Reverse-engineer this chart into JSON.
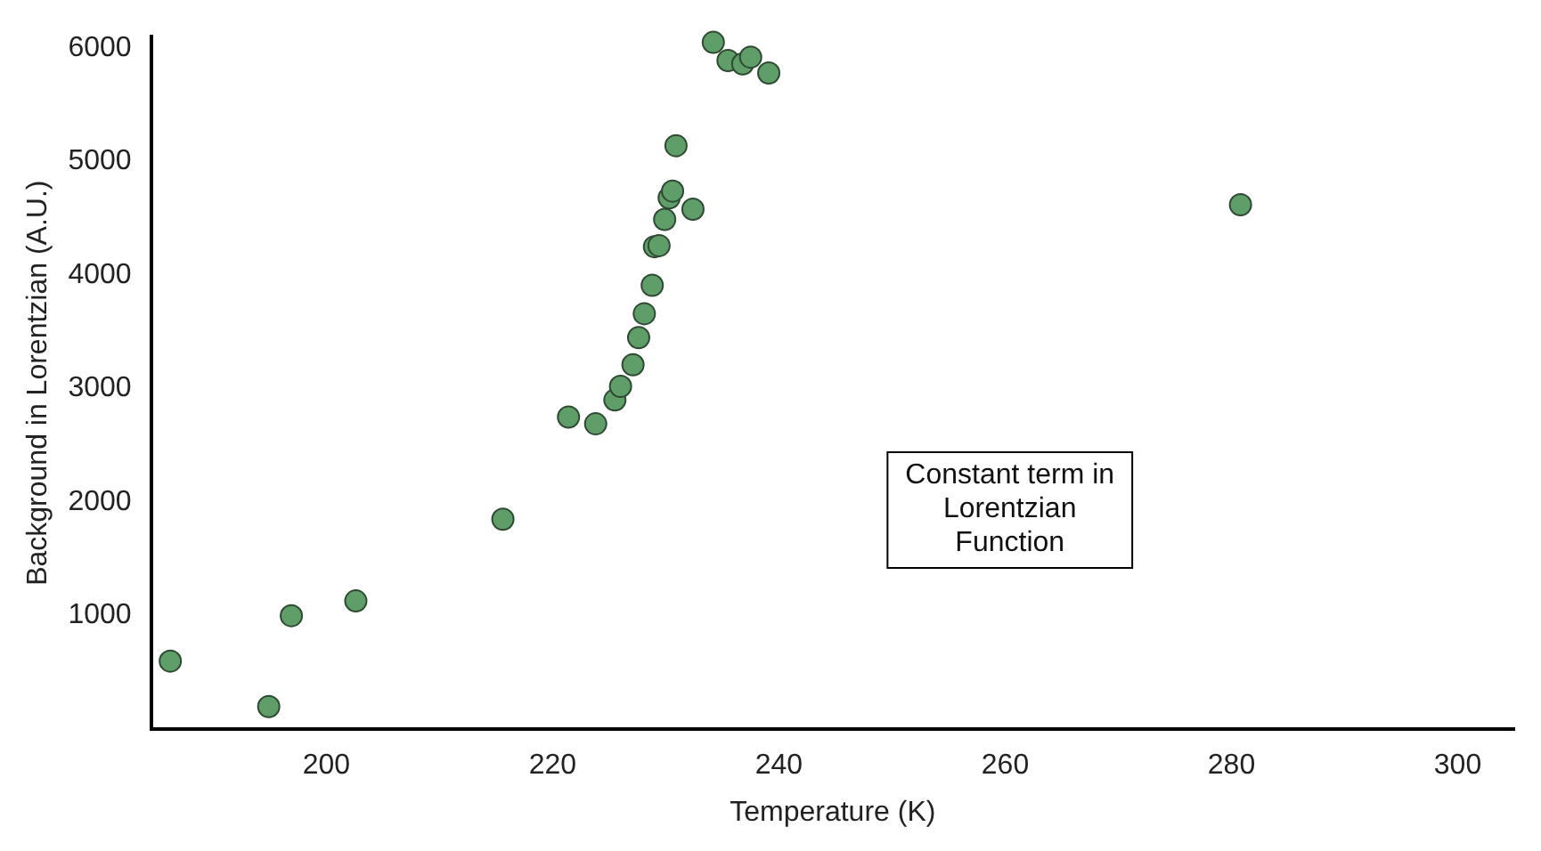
{
  "chart_data": {
    "type": "scatter",
    "xlabel": "Temperature (K)",
    "ylabel": "Background in Lorentzian (A.U.)",
    "annotations": [
      "Constant term in\nLorentzian\nFunction"
    ],
    "x": [
      186.2,
      194.9,
      196.9,
      202.6,
      215.6,
      221.4,
      223.8,
      225.5,
      226.0,
      227.1,
      227.6,
      228.1,
      228.8,
      229.0,
      229.4,
      229.9,
      230.3,
      230.6,
      232.4,
      230.9,
      234.2,
      235.5,
      236.8,
      237.5,
      239.1,
      280.8
    ],
    "series": [
      {
        "color": "#5f9e68",
        "values": [
          600,
          200,
          1000,
          1130,
          1850,
          2750,
          2690,
          2900,
          3020,
          3210,
          3450,
          3660,
          3910,
          4250,
          4260,
          4490,
          4680,
          4740,
          4580,
          5140,
          6050,
          5890,
          5860,
          5920,
          5780,
          4620
        ]
      }
    ],
    "xlim": [
      184.5,
      305
    ],
    "ylim": [
      0,
      6100
    ],
    "xticks": [
      200,
      220,
      240,
      260,
      280,
      300
    ],
    "yticks": [
      1000,
      2000,
      3000,
      4000,
      5000,
      6000
    ],
    "grid": false,
    "legend": false,
    "marker": "circle"
  }
}
